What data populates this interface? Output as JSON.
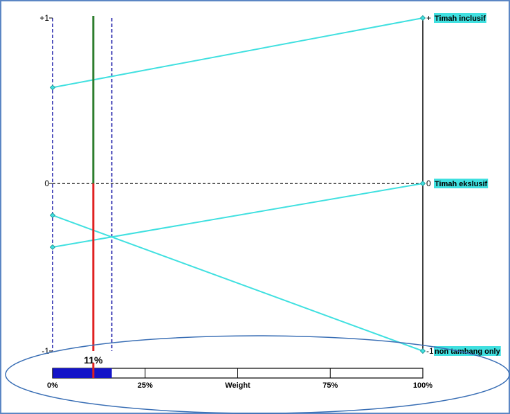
{
  "chart_data": {
    "type": "line",
    "title": "",
    "left_axis": {
      "ticks": [
        "+1",
        "0",
        "-1"
      ],
      "values": [
        1,
        0,
        -1
      ]
    },
    "right_axis": {
      "ticks": [
        "+",
        "0",
        "-1"
      ],
      "values": [
        1,
        0,
        -1
      ]
    },
    "series": [
      {
        "name": "Timah inclusif",
        "left_value": 0.58,
        "right_value": 1
      },
      {
        "name": "Timah ekslusif",
        "left_value": -0.38,
        "right_value": 0
      },
      {
        "name": "non tambang only",
        "left_value": -0.19,
        "right_value": -1
      }
    ],
    "weight": {
      "label": "Weight",
      "current_percent": 11,
      "current_label": "11%",
      "band_low_percent": 0,
      "band_high_percent": 16,
      "ticks": [
        "0%",
        "25%",
        "Weight",
        "75%",
        "100%"
      ],
      "tick_values": [
        0,
        25,
        50,
        75,
        100
      ]
    },
    "colors": {
      "series_line": "#40e0e0",
      "label_background": "#40e0e0",
      "positive_segment": "#2d7d2d",
      "negative_segment": "#e02020",
      "dashed_band": "#1a1aa8",
      "weight_fill": "#1414c8",
      "ellipse": "#3a6fb5",
      "frame": "#5b86c4"
    },
    "annotation": {
      "highlight": "ellipse around weight scale"
    }
  }
}
